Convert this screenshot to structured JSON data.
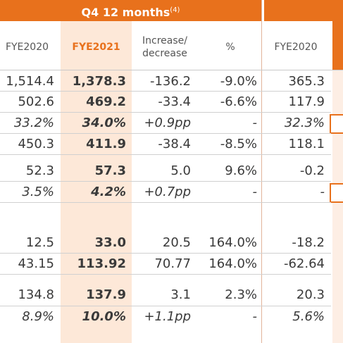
{
  "title": {
    "text": "Q4 12 months",
    "footnote": "(4)"
  },
  "headers": [
    "FYE2020",
    "FYE2021",
    "Increase/\ndecrease",
    "%",
    "FYE2020"
  ],
  "rows": [
    {
      "c": [
        "1,514.4",
        "1,378.3",
        "-136.2",
        "-9.0%",
        "365.3"
      ],
      "italic": false
    },
    {
      "c": [
        "502.6",
        "469.2",
        "-33.4",
        "-6.6%",
        "117.9"
      ],
      "italic": false
    },
    {
      "c": [
        "33.2%",
        "34.0%",
        "+0.9pp",
        "-",
        "32.3%"
      ],
      "italic": true
    },
    {
      "c": [
        "450.3",
        "411.9",
        "-38.4",
        "-8.5%",
        "118.1"
      ],
      "italic": false
    },
    {
      "c": [
        "52.3",
        "57.3",
        "5.0",
        "9.6%",
        "-0.2"
      ],
      "italic": false
    },
    {
      "c": [
        "3.5%",
        "4.2%",
        "+0.7pp",
        "-",
        "-"
      ],
      "italic": true
    },
    {
      "c": [
        "12.5",
        "33.0",
        "20.5",
        "164.0%",
        "-18.2"
      ],
      "italic": false
    },
    {
      "c": [
        "43.15",
        "113.92",
        "70.77",
        "164.0%",
        "-62.64"
      ],
      "italic": false
    },
    {
      "c": [
        "134.8",
        "137.9",
        "3.1",
        "2.3%",
        "20.3"
      ],
      "italic": false
    },
    {
      "c": [
        "8.9%",
        "10.0%",
        "+1.1pp",
        "-",
        "5.6%"
      ],
      "italic": true
    }
  ],
  "colors": {
    "accent": "#e8711c",
    "highlight": "#fde8d8"
  }
}
